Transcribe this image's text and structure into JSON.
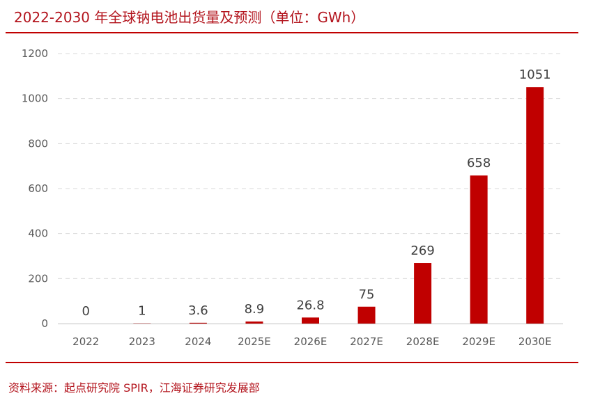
{
  "title": "2022-2030 年全球钠电池出货量及预测（单位：GWh）",
  "source": "资料来源：起点研究院 SPIR，江海证券研究发展部",
  "colors": {
    "bar": "#c00000",
    "text": "#b3141d",
    "axis_text": "#595959",
    "grid": "#d9d9d9"
  },
  "chart_data": {
    "type": "bar",
    "title": "2022-2030 年全球钠电池出货量及预测（单位：GWh）",
    "categories": [
      "2022",
      "2023",
      "2024",
      "2025E",
      "2026E",
      "2027E",
      "2028E",
      "2029E",
      "2030E"
    ],
    "values": [
      0,
      1,
      3.6,
      8.9,
      26.8,
      75,
      269,
      658,
      1051
    ],
    "data_labels": [
      "0",
      "1",
      "3.6",
      "8.9",
      "26.8",
      "75",
      "269",
      "658",
      "1051"
    ],
    "yticks": [
      0,
      200,
      400,
      600,
      800,
      1000,
      1200
    ],
    "ylim": [
      0,
      1200
    ],
    "xlabel": "",
    "ylabel": "",
    "grid": true,
    "legend": "none"
  }
}
